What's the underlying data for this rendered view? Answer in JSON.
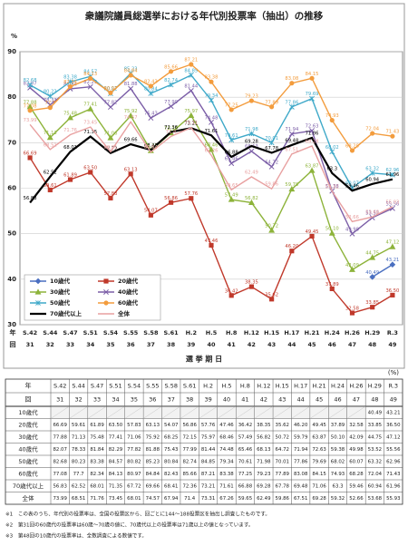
{
  "chart_data": {
    "type": "line",
    "title": "衆議院議員総選挙における年代別投票率（抽出）の推移",
    "ylabel": "%",
    "xlabel": "選 挙 期 日",
    "row_labels": [
      "年",
      "回"
    ],
    "categories": [
      "S.42",
      "S.44",
      "S.47",
      "S.51",
      "S.54",
      "S.55",
      "S.58",
      "S.61",
      "H.2",
      "H.5",
      "H.8",
      "H.12",
      "H.15",
      "H.17",
      "H.21",
      "H.24",
      "H.26",
      "H.29",
      "R.3"
    ],
    "rounds": [
      31,
      32,
      33,
      34,
      35,
      36,
      37,
      38,
      39,
      40,
      41,
      42,
      43,
      44,
      45,
      46,
      47,
      48,
      49
    ],
    "ylim": [
      30,
      90
    ],
    "yticks": [
      30,
      40,
      50,
      60,
      70,
      80,
      90
    ],
    "grid": true,
    "legend": "lower left",
    "series": [
      {
        "name": "10歳代",
        "color": "#4a6fc0",
        "marker": "diamond",
        "values": [
          null,
          null,
          null,
          null,
          null,
          null,
          null,
          null,
          null,
          null,
          null,
          null,
          null,
          null,
          null,
          null,
          null,
          40.49,
          43.21
        ]
      },
      {
        "name": "20歳代",
        "color": "#c0392b",
        "marker": "square",
        "values": [
          66.69,
          59.61,
          61.89,
          63.5,
          57.83,
          63.13,
          54.07,
          56.86,
          57.76,
          47.46,
          36.42,
          38.35,
          35.62,
          46.2,
          49.45,
          37.89,
          32.58,
          33.85,
          36.5
        ],
        "value_labels": [
          "66.69",
          "59.61",
          "61.89",
          "63.50",
          "57.83",
          "63.13",
          "54.07",
          "56.86",
          "57.76",
          "47.46",
          "36.42",
          "38.35",
          "35.62",
          "46.20",
          "49.45",
          "37.89",
          "32.58",
          "33.85",
          "36.50"
        ]
      },
      {
        "name": "30歳代",
        "color": "#8db33a",
        "marker": "triangle",
        "values": [
          77.88,
          71.13,
          75.48,
          77.41,
          71.06,
          75.92,
          68.25,
          72.15,
          75.97,
          68.46,
          57.49,
          56.82,
          50.72,
          59.79,
          63.87,
          50.1,
          42.09,
          44.75,
          47.12
        ],
        "value_labels": [
          "77.88",
          "71.13",
          "75.48",
          "77.41",
          "71.06",
          "75.92",
          "68.25",
          "72.15",
          "75.97",
          "68.46",
          "57.49",
          "56.82",
          "50.72",
          "59.79",
          "63.87",
          "50.10",
          "42.09",
          "44.75",
          "47.12"
        ]
      },
      {
        "name": "40歳代",
        "color": "#7b5ea7",
        "marker": "x",
        "values": [
          82.07,
          78.33,
          81.84,
          82.29,
          77.82,
          81.88,
          75.43,
          77.99,
          81.44,
          74.48,
          65.46,
          68.13,
          64.72,
          71.94,
          72.63,
          59.38,
          49.98,
          53.52,
          55.56
        ]
      },
      {
        "name": "50歳代",
        "color": "#3fa9c9",
        "marker": "star",
        "values": [
          82.68,
          80.23,
          83.38,
          84.57,
          80.82,
          85.23,
          80.84,
          82.74,
          84.85,
          79.34,
          70.61,
          71.98,
          70.01,
          77.86,
          79.69,
          68.02,
          60.07,
          63.32,
          62.96
        ]
      },
      {
        "name": "60歳代",
        "color": "#f39c3d",
        "marker": "circle",
        "values": [
          77.08,
          77.7,
          82.34,
          84.13,
          80.97,
          84.84,
          82.43,
          85.66,
          87.21,
          83.38,
          77.25,
          79.23,
          77.89,
          83.08,
          84.15,
          74.93,
          68.28,
          72.04,
          71.43
        ]
      },
      {
        "name": "70歳代以上",
        "color": "#000000",
        "marker": "none",
        "values": [
          56.83,
          62.52,
          68.01,
          71.35,
          67.72,
          69.66,
          68.41,
          72.36,
          73.21,
          71.61,
          66.88,
          69.28,
          67.78,
          69.48,
          71.06,
          63.3,
          59.46,
          60.94,
          61.96
        ]
      },
      {
        "name": "全体",
        "color": "#e8a0a0",
        "marker": "none",
        "values": [
          73.99,
          68.51,
          71.76,
          73.45,
          68.01,
          74.57,
          67.94,
          71.4,
          73.31,
          67.26,
          59.65,
          62.49,
          59.86,
          67.51,
          69.28,
          59.32,
          52.66,
          53.68,
          55.93
        ]
      }
    ]
  },
  "table_unit": "(%)",
  "notes": [
    "※1　この表のうち、年代別の投票率は、全国の投票区から、回ごとに144〜188投票区を抽出し調査したものです。",
    "※2　第31回の60歳代の投票率は60歳〜70歳の値に、70歳代以上の投票率は71歳以上の値となっています。",
    "※3　第48回の10歳代の投票率は、全数調査による数値です。"
  ]
}
